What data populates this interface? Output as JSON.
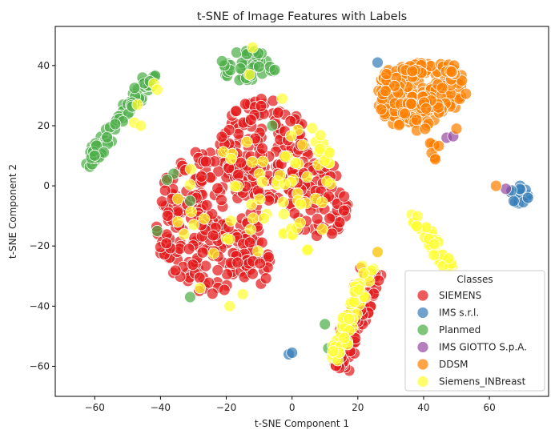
{
  "chart_data": {
    "type": "scatter",
    "title": "t-SNE of Image Features with Labels",
    "xlabel": "t-SNE Component 1",
    "ylabel": "t-SNE Component 2",
    "xlim": [
      -72,
      78
    ],
    "ylim": [
      -70,
      53
    ],
    "x_ticks": [
      -60,
      -40,
      -20,
      0,
      20,
      40,
      60
    ],
    "y_ticks": [
      -60,
      -40,
      -20,
      0,
      20,
      40
    ],
    "grid": false,
    "legend": {
      "title": "Classes",
      "placement": "lower-right"
    },
    "series": [
      {
        "name": "SIEMENS",
        "color": "#e41a1c",
        "clusters": [
          {
            "shape": "ellipse",
            "cx": -25,
            "cy": -12,
            "rx": 17,
            "ry": 24,
            "rot": 0,
            "n": 230
          },
          {
            "shape": "ellipse",
            "cx": -8,
            "cy": 12,
            "rx": 14,
            "ry": 17,
            "rot": 0,
            "n": 170
          },
          {
            "shape": "ellipse",
            "cx": 8,
            "cy": -5,
            "rx": 9,
            "ry": 14,
            "rot": 0,
            "n": 80
          },
          {
            "shape": "ellipse",
            "cx": -12,
            "cy": -26,
            "rx": 7,
            "ry": 8,
            "rot": 0,
            "n": 30
          },
          {
            "shape": "line",
            "x1": 14,
            "y1": -62,
            "x2": 24,
            "y2": -28,
            "w": 3.5,
            "n": 80
          }
        ],
        "points": [
          [
            26,
            -22
          ]
        ]
      },
      {
        "name": "IMS s.r.l.",
        "color": "#377eb8",
        "clusters": [
          {
            "shape": "ellipse",
            "cx": 69,
            "cy": -3,
            "rx": 3,
            "ry": 3,
            "rot": 0,
            "n": 18
          }
        ],
        "points": [
          [
            26,
            41
          ],
          [
            -1,
            -56
          ],
          [
            0,
            -55.5
          ]
        ]
      },
      {
        "name": "Planmed",
        "color": "#4daf4a",
        "clusters": [
          {
            "shape": "line",
            "x1": -63,
            "y1": 6,
            "x2": -42,
            "y2": 38,
            "w": 2.2,
            "n": 70
          },
          {
            "shape": "ellipse",
            "cx": -14,
            "cy": 40,
            "rx": 8,
            "ry": 5,
            "rot": 0,
            "n": 40
          },
          {
            "shape": "ellipse",
            "cx": -5,
            "cy": 39,
            "rx": 2,
            "ry": 1.5,
            "rot": 0,
            "n": 4
          }
        ],
        "points": [
          [
            -36,
            4
          ],
          [
            -38,
            2
          ],
          [
            -41,
            -15
          ],
          [
            -31,
            -37
          ],
          [
            -6,
            20
          ],
          [
            10,
            -46
          ],
          [
            11,
            -54
          ],
          [
            -31,
            -5
          ]
        ]
      },
      {
        "name": "IMS GIOTTO S.p.A.",
        "color": "#984ea3",
        "clusters": [],
        "points": [
          [
            47,
            16
          ],
          [
            49,
            16.5
          ],
          [
            65,
            -1
          ]
        ]
      },
      {
        "name": "DDSM",
        "color": "#ff7f00",
        "clusters": [
          {
            "shape": "ellipse",
            "cx": 33,
            "cy": 30,
            "rx": 7,
            "ry": 10,
            "rot": 0,
            "n": 100
          },
          {
            "shape": "ellipse",
            "cx": 47,
            "cy": 32,
            "rx": 6,
            "ry": 8,
            "rot": 0,
            "n": 50
          },
          {
            "shape": "ellipse",
            "cx": 40,
            "cy": 24,
            "rx": 6,
            "ry": 6,
            "rot": 0,
            "n": 40
          },
          {
            "shape": "ellipse",
            "cx": 43,
            "cy": 11,
            "rx": 2,
            "ry": 4,
            "rot": 0,
            "n": 10
          },
          {
            "shape": "ellipse",
            "cx": 42,
            "cy": 39,
            "rx": 9,
            "ry": 2,
            "rot": 0,
            "n": 30
          }
        ],
        "points": [
          [
            62,
            0
          ],
          [
            50,
            19
          ]
        ]
      },
      {
        "name": "Siemens_INBreast",
        "color": "#ffff33",
        "clusters": [
          {
            "shape": "line",
            "x1": 37,
            "y1": -9,
            "x2": 48,
            "y2": -28,
            "w": 1.8,
            "n": 40
          },
          {
            "shape": "line",
            "x1": 13,
            "y1": -58,
            "x2": 23,
            "y2": -27,
            "w": 2.2,
            "n": 60
          },
          {
            "shape": "ellipse",
            "cx": -18,
            "cy": -5,
            "rx": 18,
            "ry": 22,
            "rot": 0,
            "n": 30
          },
          {
            "shape": "ellipse",
            "cx": 3,
            "cy": 0,
            "rx": 9,
            "ry": 22,
            "rot": 0,
            "n": 40
          },
          {
            "shape": "ellipse",
            "cx": 10,
            "cy": 12,
            "rx": 2,
            "ry": 6,
            "rot": 0,
            "n": 8
          }
        ],
        "points": [
          [
            -47,
            27
          ],
          [
            -48,
            21
          ],
          [
            -46,
            20
          ],
          [
            -42,
            34
          ],
          [
            -41,
            32
          ],
          [
            -12,
            46
          ],
          [
            -13,
            37
          ],
          [
            -15,
            -36
          ],
          [
            -19,
            -40
          ],
          [
            -28,
            -34
          ],
          [
            26,
            -22
          ],
          [
            -3,
            29
          ]
        ]
      }
    ]
  }
}
